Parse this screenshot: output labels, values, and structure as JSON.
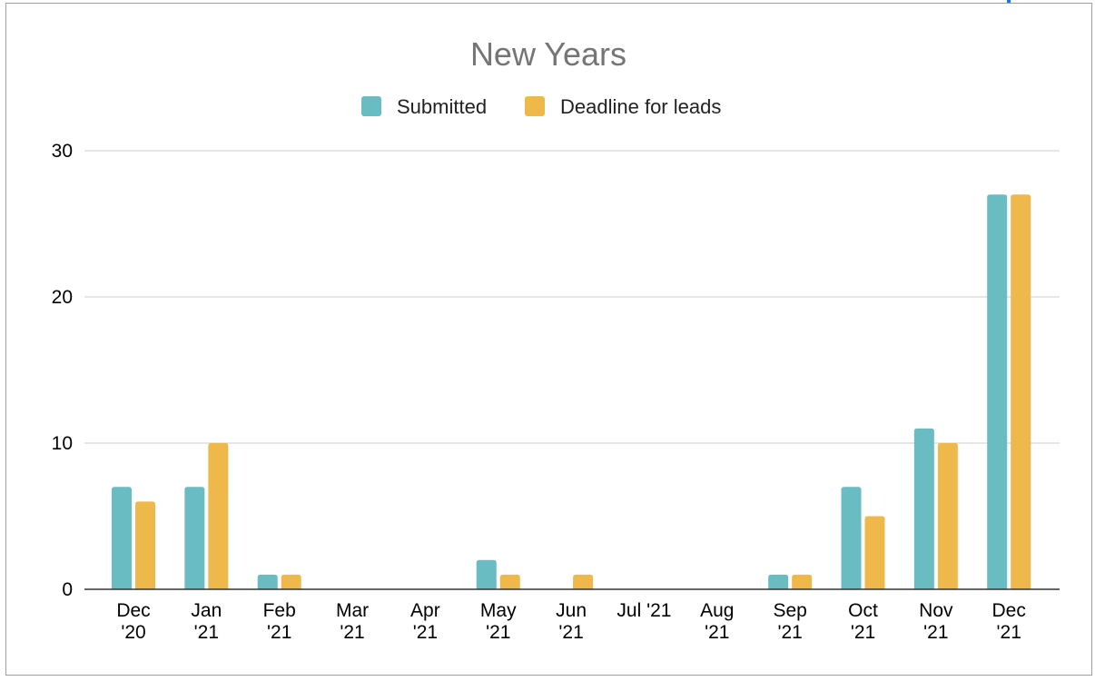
{
  "chart_data": {
    "type": "bar",
    "title": "New Years",
    "categories": [
      [
        "Dec",
        "'20"
      ],
      [
        "Jan",
        "'21"
      ],
      [
        "Feb",
        "'21"
      ],
      [
        "Mar",
        "'21"
      ],
      [
        "Apr",
        "'21"
      ],
      [
        "May",
        "'21"
      ],
      [
        "Jun",
        "'21"
      ],
      [
        "Jul '21"
      ],
      [
        "Aug",
        "'21"
      ],
      [
        "Sep",
        "'21"
      ],
      [
        "Oct",
        "'21"
      ],
      [
        "Nov",
        "'21"
      ],
      [
        "Dec",
        "'21"
      ]
    ],
    "series": [
      {
        "name": "Submitted",
        "color": "#6abcc3",
        "values": [
          7,
          7,
          1,
          0,
          0,
          2,
          0,
          0,
          0,
          1,
          7,
          11,
          27
        ]
      },
      {
        "name": "Deadline for leads",
        "color": "#efb84b",
        "values": [
          6,
          10,
          1,
          0,
          0,
          1,
          1,
          0,
          0,
          1,
          5,
          10,
          27
        ]
      }
    ],
    "yticks": [
      "0",
      "10",
      "20",
      "30"
    ],
    "ylim": [
      0,
      30
    ],
    "grid": true,
    "legend": "top-center"
  }
}
